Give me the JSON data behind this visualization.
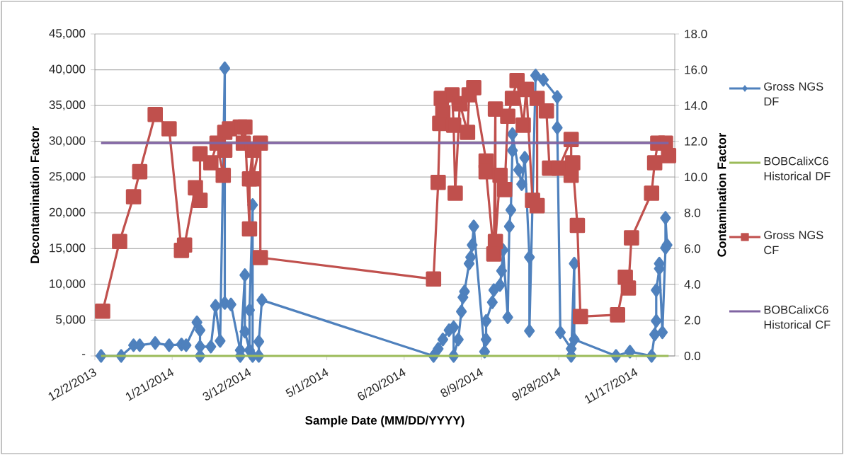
{
  "chart_data": {
    "type": "line",
    "xlabel": "Sample Date (MM/DD/YYYY)",
    "ylabel": "Decontamination Factor",
    "y2label": "Contamination Factor",
    "xlim": [
      "2013-12-02",
      "2014-12-12"
    ],
    "xticks": [
      {
        "value": "2013-12-02",
        "label": "12/2/2013"
      },
      {
        "value": "2014-01-21",
        "label": "1/21/2014"
      },
      {
        "value": "2014-03-12",
        "label": "3/12/2014"
      },
      {
        "value": "2014-05-01",
        "label": "5/1/2014"
      },
      {
        "value": "2014-06-20",
        "label": "6/20/2014"
      },
      {
        "value": "2014-08-09",
        "label": "8/9/2014"
      },
      {
        "value": "2014-09-28",
        "label": "9/28/2014"
      },
      {
        "value": "2014-11-17",
        "label": "11/17/2014"
      }
    ],
    "ylim": [
      0,
      45000
    ],
    "yticks": [
      {
        "value": 0,
        "label": "-"
      },
      {
        "value": 5000,
        "label": "5,000"
      },
      {
        "value": 10000,
        "label": "10,000"
      },
      {
        "value": 15000,
        "label": "15,000"
      },
      {
        "value": 20000,
        "label": "20,000"
      },
      {
        "value": 25000,
        "label": "25,000"
      },
      {
        "value": 30000,
        "label": "30,000"
      },
      {
        "value": 35000,
        "label": "35,000"
      },
      {
        "value": 40000,
        "label": "40,000"
      },
      {
        "value": 45000,
        "label": "45,000"
      }
    ],
    "y2lim": [
      0,
      18
    ],
    "y2ticks": [
      {
        "value": 0,
        "label": "0.0"
      },
      {
        "value": 2,
        "label": "2.0"
      },
      {
        "value": 4,
        "label": "4.0"
      },
      {
        "value": 6,
        "label": "6.0"
      },
      {
        "value": 8,
        "label": "8.0"
      },
      {
        "value": 10,
        "label": "10.0"
      },
      {
        "value": 12,
        "label": "12.0"
      },
      {
        "value": 14,
        "label": "14.0"
      },
      {
        "value": 16,
        "label": "16.0"
      },
      {
        "value": 18,
        "label": "18.0"
      }
    ],
    "grid": "y",
    "legend": "right",
    "line_style": "solid",
    "series": [
      {
        "name": "Gross NGS DF",
        "color": "#4f81bd",
        "marker": "diamond",
        "axis": "y",
        "x": [
          "2013-12-06",
          "2013-12-19",
          "2013-12-27",
          "2013-12-31",
          "2014-01-10",
          "2014-01-19",
          "2014-01-27",
          "2014-01-30",
          "2014-02-06",
          "2014-02-08",
          "2014-02-08",
          "2014-02-08",
          "2014-02-15",
          "2014-02-18",
          "2014-02-21",
          "2014-02-24",
          "2014-02-24",
          "2014-02-28",
          "2014-03-06",
          "2014-03-06",
          "2014-03-09",
          "2014-03-09",
          "2014-03-12",
          "2014-03-12",
          "2014-03-14",
          "2014-03-14",
          "2014-03-18",
          "2014-03-18",
          "2014-03-20",
          "2014-07-09",
          "2014-07-12",
          "2014-07-15",
          "2014-07-19",
          "2014-07-22",
          "2014-07-22",
          "2014-07-25",
          "2014-07-27",
          "2014-07-28",
          "2014-07-29",
          "2014-08-01",
          "2014-08-02",
          "2014-08-03",
          "2014-08-04",
          "2014-08-11",
          "2014-08-12",
          "2014-08-12",
          "2014-08-16",
          "2014-08-17",
          "2014-08-21",
          "2014-08-22",
          "2014-08-23",
          "2014-08-26",
          "2014-08-27",
          "2014-08-28",
          "2014-08-29",
          "2014-08-29",
          "2014-09-02",
          "2014-09-04",
          "2014-09-06",
          "2014-09-09",
          "2014-09-09",
          "2014-09-13",
          "2014-09-18",
          "2014-09-27",
          "2014-09-27",
          "2014-09-29",
          "2014-10-06",
          "2014-10-06",
          "2014-10-08",
          "2014-10-08",
          "2014-11-04",
          "2014-11-13",
          "2014-11-27",
          "2014-11-29",
          "2014-11-30",
          "2014-11-30",
          "2014-12-02",
          "2014-12-02",
          "2014-12-04",
          "2014-12-06",
          "2014-12-06",
          "2014-12-07"
        ],
        "values": [
          0,
          0,
          1500,
          1500,
          1800,
          1500,
          1600,
          1500,
          4700,
          3600,
          0,
          1300,
          1300,
          7000,
          2100,
          40200,
          7400,
          7200,
          800,
          0,
          11300,
          3400,
          800,
          6400,
          21100,
          0,
          0,
          2000,
          7800,
          0,
          1000,
          2300,
          3600,
          4000,
          0,
          2300,
          6200,
          8200,
          9000,
          12900,
          13800,
          15500,
          18100,
          600,
          2300,
          4900,
          7500,
          9200,
          9900,
          11900,
          14800,
          5400,
          18100,
          20400,
          28700,
          31000,
          26000,
          24000,
          27700,
          13800,
          3500,
          39200,
          38600,
          36200,
          31900,
          3300,
          1000,
          0,
          12900,
          2300,
          0,
          600,
          0,
          3000,
          4900,
          9200,
          12200,
          12900,
          3300,
          15100,
          19300,
          15500
        ]
      },
      {
        "name": "BOBCalixC6 Historical DF",
        "color": "#9bbb59",
        "marker": "none",
        "axis": "y",
        "x": [
          "2013-12-06",
          "2014-12-08"
        ],
        "values": [
          0,
          0
        ]
      },
      {
        "name": "Gross NGS CF",
        "color": "#c0504d",
        "marker": "square",
        "axis": "y2",
        "x": [
          "2013-12-07",
          "2013-12-18",
          "2013-12-27",
          "2013-12-31",
          "2014-01-10",
          "2014-01-19",
          "2014-01-27",
          "2014-01-29",
          "2014-02-05",
          "2014-02-08",
          "2014-02-08",
          "2014-02-15",
          "2014-02-19",
          "2014-02-23",
          "2014-02-24",
          "2014-02-24",
          "2014-02-27",
          "2014-03-06",
          "2014-03-08",
          "2014-03-09",
          "2014-03-12",
          "2014-03-12",
          "2014-03-14",
          "2014-03-14",
          "2014-03-19",
          "2014-03-19",
          "2014-07-09",
          "2014-07-12",
          "2014-07-13",
          "2014-07-14",
          "2014-07-15",
          "2014-07-21",
          "2014-07-22",
          "2014-07-23",
          "2014-07-26",
          "2014-07-31",
          "2014-08-01",
          "2014-08-04",
          "2014-08-12",
          "2014-08-12",
          "2014-08-17",
          "2014-08-18",
          "2014-08-18",
          "2014-08-21",
          "2014-08-24",
          "2014-08-26",
          "2014-08-29",
          "2014-09-01",
          "2014-09-05",
          "2014-09-07",
          "2014-09-11",
          "2014-09-14",
          "2014-09-14",
          "2014-09-20",
          "2014-09-22",
          "2014-09-28",
          "2014-10-06",
          "2014-10-06",
          "2014-10-07",
          "2014-10-10",
          "2014-10-12",
          "2014-11-05",
          "2014-11-10",
          "2014-11-12",
          "2014-11-14",
          "2014-11-27",
          "2014-11-29",
          "2014-12-01",
          "2014-12-06",
          "2014-12-08"
        ],
        "values": [
          2.5,
          6.4,
          8.9,
          10.3,
          13.5,
          12.7,
          5.9,
          6.2,
          9.4,
          8.7,
          11.3,
          10.8,
          11.9,
          10.1,
          11.5,
          12.5,
          12.7,
          12.8,
          11.9,
          12.8,
          7.1,
          9.9,
          11.5,
          9.9,
          11.9,
          5.5,
          4.3,
          9.7,
          13.0,
          14.4,
          13.6,
          14.6,
          12.9,
          9.1,
          14.1,
          12.5,
          14.6,
          15.0,
          10.9,
          10.3,
          5.7,
          13.8,
          6.4,
          10.1,
          9.3,
          13.4,
          14.4,
          15.4,
          12.9,
          14.9,
          8.7,
          8.4,
          14.4,
          13.7,
          10.5,
          10.5,
          12.1,
          10.1,
          10.8,
          7.3,
          2.2,
          2.3,
          4.4,
          3.8,
          6.6,
          9.1,
          10.8,
          11.9,
          11.9,
          11.2
        ]
      },
      {
        "name": "BOBCalixC6 Historical CF",
        "color": "#8064a2",
        "marker": "none",
        "axis": "y2",
        "x": [
          "2013-12-06",
          "2014-12-08"
        ],
        "values": [
          11.9,
          11.9
        ]
      }
    ]
  }
}
